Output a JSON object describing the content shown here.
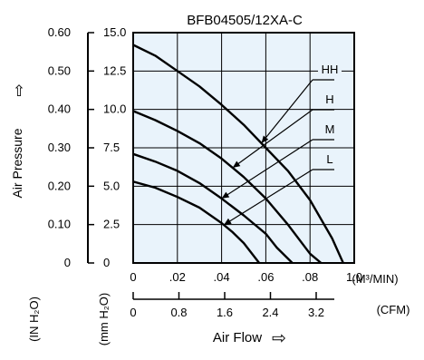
{
  "chart_data": {
    "type": "line",
    "title": "BFB04505/12XA-C",
    "xlabel": "Air Flow",
    "ylabel": "Air Pressure",
    "xlim": [
      0,
      0.1
    ],
    "ylim": [
      0,
      15.0
    ],
    "grid": true,
    "x_ticks": [
      "0",
      ".02",
      ".04",
      ".06",
      ".08",
      "1.0"
    ],
    "x_unit": "(M³/MIN)",
    "x2_ticks": [
      "0",
      "0.8",
      "1.6",
      "2.4",
      "3.2"
    ],
    "x2_unit": "(CFM)",
    "y_ticks_mmh2o": [
      "0",
      "2.5",
      "5.0",
      "7.5",
      "10.0",
      "12.5",
      "15.0"
    ],
    "y_unit_mmh2o": "(mm H₂O)",
    "y_ticks_inh2o": [
      "0",
      "0.10",
      "0.20",
      "0.30",
      "0.40",
      "0.50",
      "0.60"
    ],
    "y_unit_inh2o": "(IN H₂O)",
    "y_arrow": "⇧",
    "x_arrow": "⇨",
    "series": [
      {
        "name": "HH",
        "x": [
          0,
          0.01,
          0.02,
          0.03,
          0.04,
          0.05,
          0.06,
          0.07,
          0.08,
          0.09,
          0.095
        ],
        "y": [
          14.2,
          13.5,
          12.5,
          11.5,
          10.3,
          9.0,
          7.5,
          6.0,
          4.1,
          1.6,
          0
        ]
      },
      {
        "name": "H",
        "x": [
          0,
          0.01,
          0.02,
          0.03,
          0.04,
          0.05,
          0.06,
          0.07,
          0.08,
          0.085
        ],
        "y": [
          9.9,
          9.3,
          8.6,
          7.8,
          6.8,
          5.6,
          4.2,
          2.5,
          0.6,
          0
        ]
      },
      {
        "name": "M",
        "x": [
          0,
          0.01,
          0.02,
          0.03,
          0.04,
          0.05,
          0.06,
          0.065,
          0.072
        ],
        "y": [
          7.1,
          6.6,
          6.0,
          5.2,
          4.2,
          3.1,
          1.9,
          1.0,
          0
        ]
      },
      {
        "name": "L",
        "x": [
          0,
          0.01,
          0.02,
          0.03,
          0.04,
          0.045,
          0.05,
          0.057
        ],
        "y": [
          5.3,
          4.9,
          4.3,
          3.6,
          2.6,
          2.0,
          1.3,
          0
        ]
      }
    ]
  },
  "colors": {
    "plot_bg": "#e9f3fb",
    "line": "#000000"
  }
}
